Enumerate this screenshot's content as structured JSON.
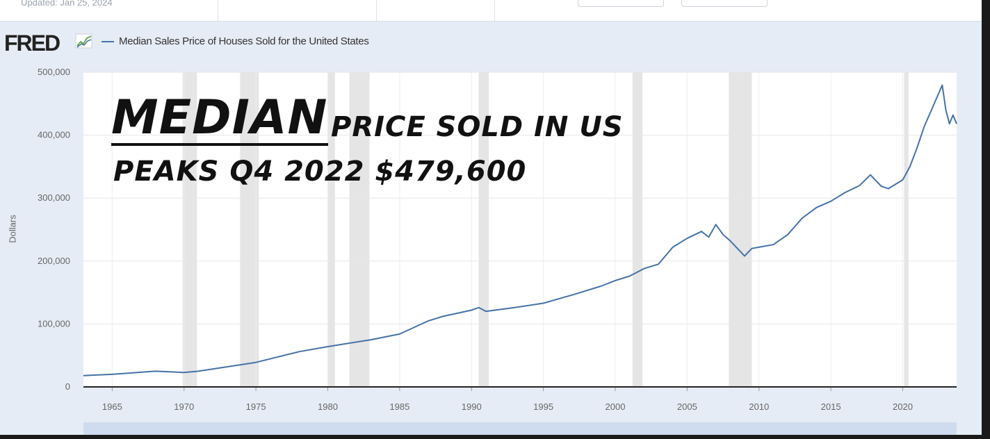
{
  "header": {
    "updated_text": "Updated: Jan 25, 2024"
  },
  "logo": {
    "text": "FRED"
  },
  "legend": {
    "series_label": "Median Sales Price of Houses Sold for the United States",
    "color": "#4572a7"
  },
  "annotation": {
    "line1_big": "MEDIAN",
    "line1_rest": "PRICE SOLD IN US",
    "line2": "PEAKS Q4 2022 $479,600"
  },
  "chart_data": {
    "type": "line",
    "title": "",
    "xlabel": "",
    "ylabel": "Dollars",
    "xlim": [
      1963,
      2023.75
    ],
    "ylim": [
      0,
      500000
    ],
    "y_ticks": [
      0,
      100000,
      200000,
      300000,
      400000,
      500000
    ],
    "y_tick_labels": [
      "0",
      "100,000",
      "200,000",
      "300,000",
      "400,000",
      "500,000"
    ],
    "x_ticks": [
      1965,
      1970,
      1975,
      1980,
      1985,
      1990,
      1995,
      2000,
      2005,
      2010,
      2015,
      2020
    ],
    "x_tick_labels": [
      "1965",
      "1970",
      "1975",
      "1980",
      "1985",
      "1990",
      "1995",
      "2000",
      "2005",
      "2010",
      "2015",
      "2020"
    ],
    "grid": true,
    "recessions": [
      [
        1969.9,
        1970.9
      ],
      [
        1973.9,
        1975.2
      ],
      [
        1980.0,
        1980.5
      ],
      [
        1981.5,
        1982.9
      ],
      [
        1990.5,
        1991.2
      ],
      [
        2001.2,
        2001.9
      ],
      [
        2007.9,
        2009.5
      ],
      [
        2020.1,
        2020.4
      ]
    ],
    "series": [
      {
        "name": "Median Sales Price of Houses Sold for the United States",
        "x": [
          1963,
          1965,
          1968,
          1970,
          1971,
          1975,
          1978,
          1980,
          1983,
          1985,
          1987,
          1988,
          1990,
          1990.5,
          1991,
          1993,
          1995,
          1997,
          1999,
          2000,
          2001,
          2002,
          2003,
          2004,
          2005,
          2006,
          2006.5,
          2007,
          2007.5,
          2008,
          2009,
          2009.5,
          2010,
          2011,
          2012,
          2013,
          2014,
          2015,
          2016,
          2017,
          2017.75,
          2018.5,
          2019,
          2020,
          2020.5,
          2021,
          2021.5,
          2022,
          2022.75,
          2023,
          2023.25,
          2023.5,
          2023.75
        ],
        "y": [
          18000,
          20000,
          25000,
          23000,
          25000,
          39000,
          56000,
          64000,
          75000,
          84000,
          105000,
          112000,
          122000,
          126000,
          120000,
          126000,
          133000,
          146000,
          160000,
          169000,
          176000,
          188000,
          195000,
          222000,
          236000,
          247000,
          238000,
          258000,
          242000,
          232000,
          208000,
          220000,
          222000,
          226000,
          242000,
          268000,
          285000,
          295000,
          309000,
          320000,
          337000,
          319000,
          315000,
          329000,
          350000,
          380000,
          414000,
          440000,
          479600,
          440000,
          418000,
          432000,
          418000
        ]
      }
    ]
  }
}
